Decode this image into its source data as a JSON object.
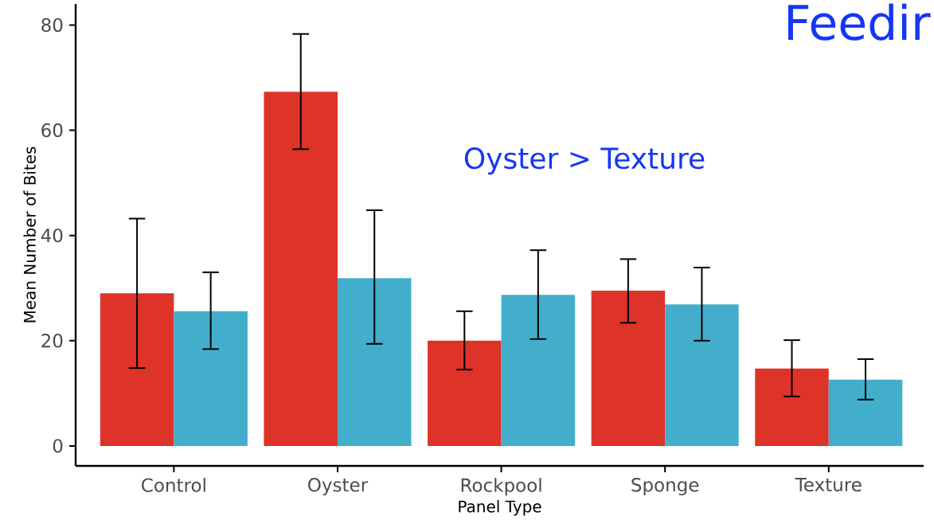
{
  "chart_data": {
    "type": "bar",
    "title": "Feedir",
    "xlabel": "Panel Type",
    "ylabel": "Mean Number of Bites",
    "categories": [
      "Control",
      "Oyster",
      "Rockpool",
      "Sponge",
      "Texture"
    ],
    "series": [
      {
        "color": "#dd3328",
        "values": [
          29.0,
          67.3,
          20.0,
          29.5,
          14.7
        ],
        "errors": [
          [
            14.8,
            43.2
          ],
          [
            56.4,
            78.3
          ],
          [
            14.5,
            25.6
          ],
          [
            23.4,
            35.5
          ],
          [
            9.4,
            20.1
          ]
        ]
      },
      {
        "color": "#42aecb",
        "values": [
          25.6,
          31.9,
          28.7,
          26.9,
          12.6
        ],
        "errors": [
          [
            18.4,
            33.0
          ],
          [
            19.4,
            44.8
          ],
          [
            20.3,
            37.2
          ],
          [
            20.0,
            33.9
          ],
          [
            8.8,
            16.5
          ]
        ]
      }
    ],
    "ylim": [
      -3.8,
      84
    ],
    "yticks": [
      0,
      20,
      40,
      60,
      80
    ],
    "grid": false,
    "annotations": [
      "Oyster > Texture"
    ]
  }
}
